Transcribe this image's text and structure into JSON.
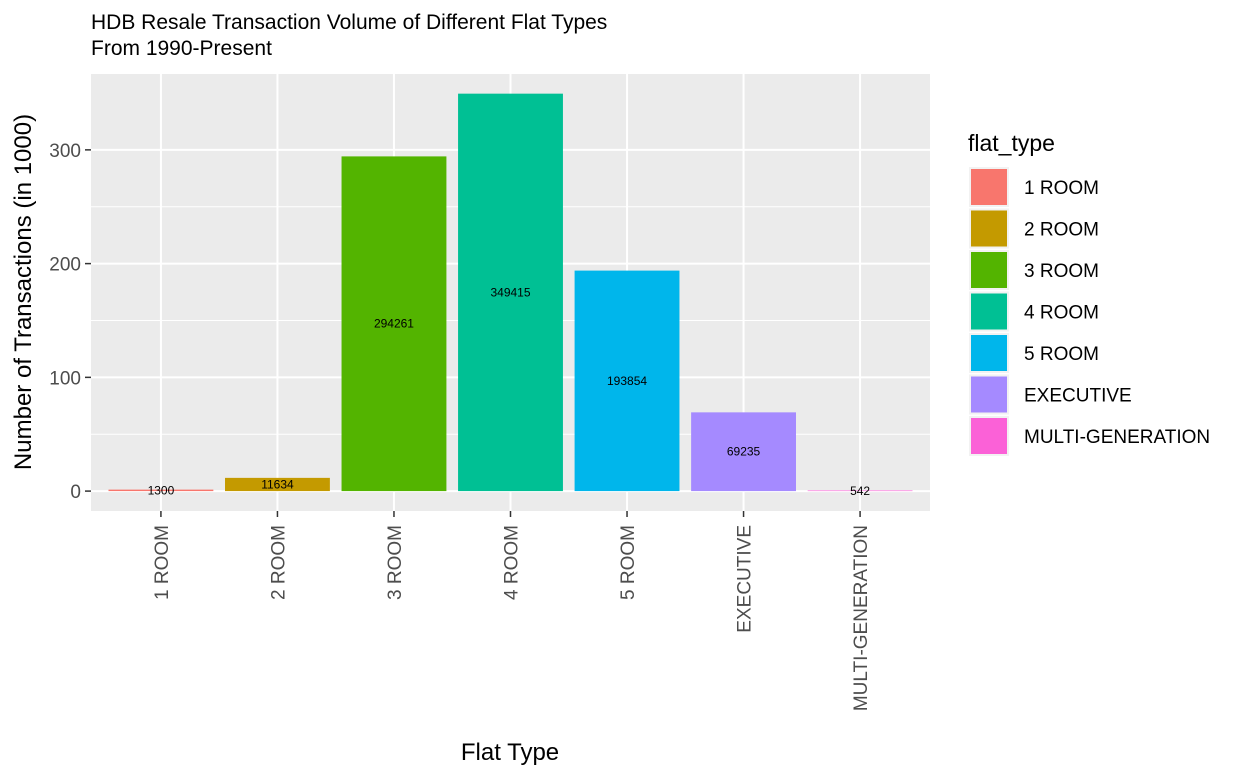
{
  "chart_data": {
    "type": "bar",
    "title": "HDB Resale Transaction Volume of Different Flat Types",
    "subtitle": "From 1990-Present",
    "xlabel": "Flat Type",
    "ylabel": "Number of Transactions (in 1000)",
    "categories": [
      "1 ROOM",
      "2 ROOM",
      "3 ROOM",
      "4 ROOM",
      "5 ROOM",
      "EXECUTIVE",
      "MULTI-GENERATION"
    ],
    "values": [
      1.3,
      11.634,
      294.261,
      349.415,
      193.854,
      69.235,
      0.542
    ],
    "data_labels": [
      "1300",
      "11634",
      "294261",
      "349415",
      "193854",
      "69235",
      "542"
    ],
    "colors": [
      "#F8766D",
      "#C49A00",
      "#53B400",
      "#00C094",
      "#00B6EB",
      "#A58AFF",
      "#FB61D7"
    ],
    "yticks": [
      0,
      100,
      200,
      300
    ],
    "ylim": [
      -17.5,
      366.7
    ],
    "grid": true,
    "legend": {
      "title": "flat_type",
      "position": "right",
      "entries": [
        "1 ROOM",
        "2 ROOM",
        "3 ROOM",
        "4 ROOM",
        "5 ROOM",
        "EXECUTIVE",
        "MULTI-GENERATION"
      ]
    }
  }
}
